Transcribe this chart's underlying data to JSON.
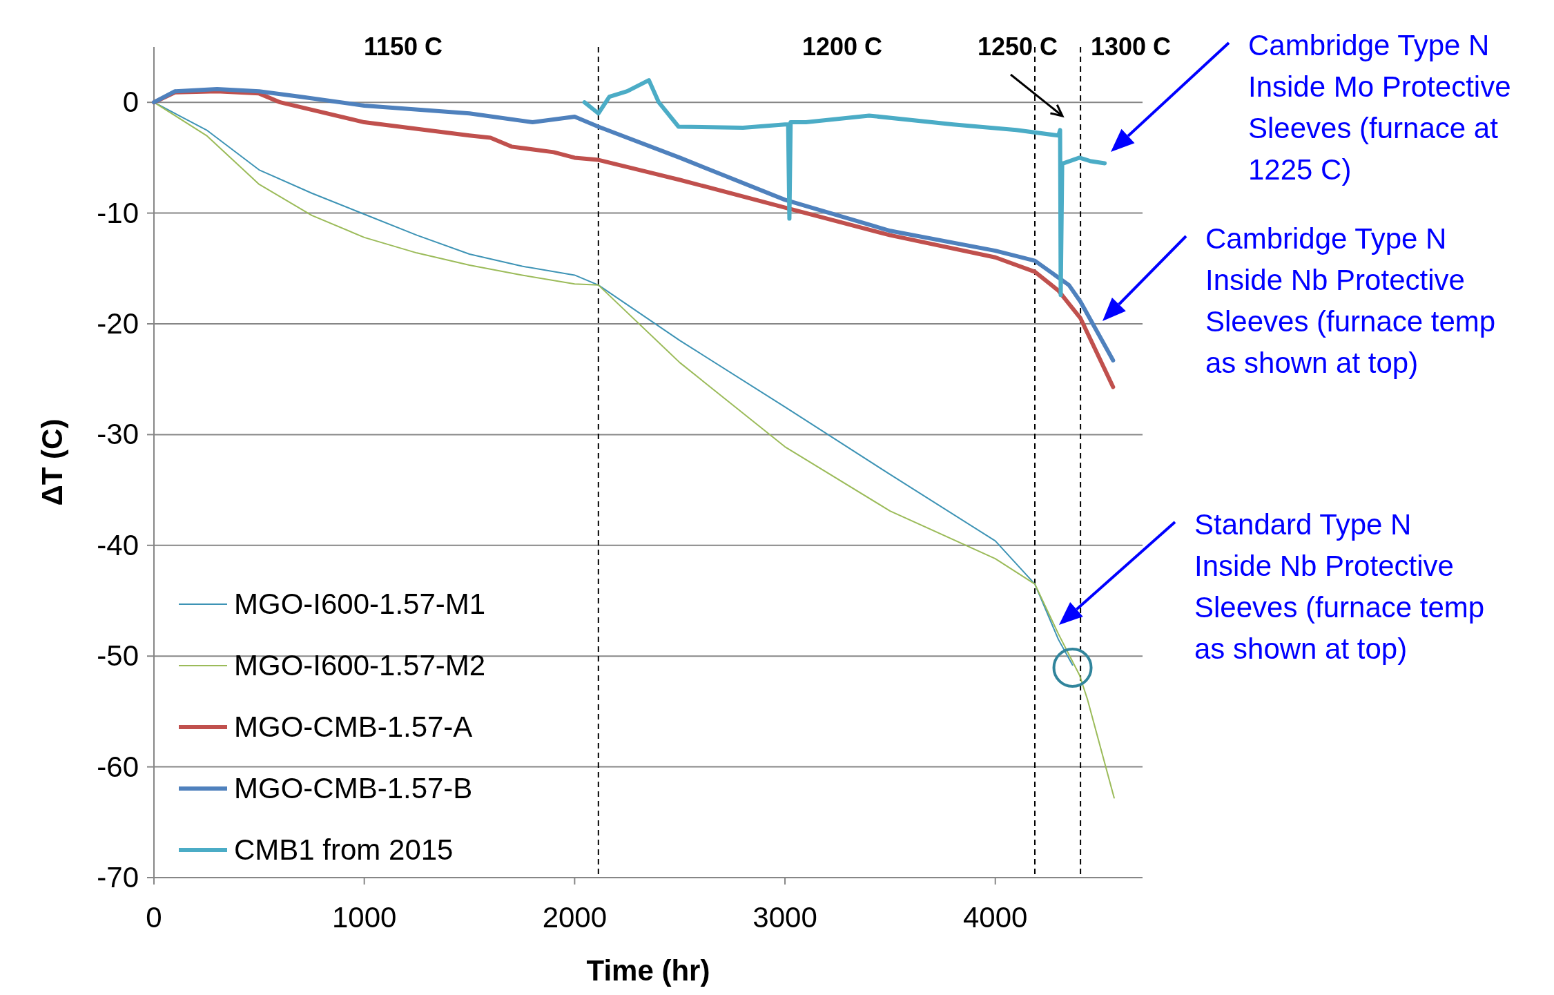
{
  "chart_data": {
    "type": "line",
    "xlabel": "Time (hr)",
    "ylabel": "ΔT (C)",
    "xlim": [
      0,
      4700
    ],
    "ylim": [
      -70,
      5
    ],
    "xticks": [
      0,
      1000,
      2000,
      3000,
      4000
    ],
    "yticks": [
      -70,
      -60,
      -50,
      -40,
      -30,
      -20,
      -10,
      0
    ],
    "grid": "y",
    "legend": "bottom left",
    "line_style": "solid",
    "marker": "none",
    "series": [
      {
        "name": "MGO-I600-1.57-M1",
        "color": "#3d93b5",
        "x": [
          0,
          250,
          500,
          750,
          1000,
          1250,
          1500,
          1750,
          2000,
          2113,
          2500,
          3000,
          3500,
          4000,
          4188,
          4300,
          4367
        ],
        "values": [
          0,
          -2.5,
          -6.1,
          -8.2,
          -10.1,
          -12,
          -13.7,
          -14.8,
          -15.6,
          -16.5,
          -21.5,
          -27.5,
          -33.6,
          -39.6,
          -43.5,
          -48.5,
          -50.8
        ]
      },
      {
        "name": "MGO-I600-1.57-M2",
        "color": "#9bbb59",
        "x": [
          0,
          250,
          500,
          750,
          1000,
          1250,
          1500,
          1750,
          2000,
          2113,
          2500,
          3000,
          3500,
          4000,
          4188,
          4300,
          4400,
          4438,
          4565
        ],
        "values": [
          0,
          -3,
          -7.4,
          -10.2,
          -12.2,
          -13.6,
          -14.7,
          -15.6,
          -16.4,
          -16.5,
          -23.5,
          -31.1,
          -36.9,
          -41.2,
          -43.5,
          -48,
          -51.7,
          -53.9,
          -62.8
        ]
      },
      {
        "name": "MGO-CMB-1.57-A",
        "color": "#c0504d",
        "x": [
          0,
          100,
          300,
          500,
          600,
          1000,
          1500,
          1600,
          1700,
          1900,
          2000,
          2113,
          2500,
          3000,
          3500,
          4000,
          4188,
          4300,
          4405,
          4560
        ],
        "values": [
          0,
          0.9,
          1,
          0.8,
          0,
          -1.8,
          -3,
          -3.2,
          -4,
          -4.5,
          -5,
          -5.2,
          -7,
          -9.5,
          -12,
          -14,
          -15.3,
          -17,
          -19.5,
          -25.7
        ]
      },
      {
        "name": "MGO-CMB-1.57-B",
        "color": "#4f81bd",
        "x": [
          0,
          100,
          300,
          500,
          700,
          1000,
          1500,
          1800,
          2000,
          2113,
          2500,
          3000,
          3500,
          4000,
          4188,
          4350,
          4405,
          4560
        ],
        "values": [
          0,
          1,
          1.2,
          1,
          0.5,
          -0.3,
          -1,
          -1.8,
          -1.3,
          -2.2,
          -5,
          -8.8,
          -11.6,
          -13.4,
          -14.3,
          -16.5,
          -18,
          -23.3
        ]
      },
      {
        "name": "CMB1 from 2015",
        "color": "#4bacc6",
        "x": [
          2047,
          2113,
          2165,
          2250,
          2353,
          2400,
          2494,
          2800,
          3000,
          3015,
          3021,
          3027,
          3100,
          3400,
          3800,
          4100,
          4300,
          4308,
          4311,
          4318,
          4325,
          4400,
          4450,
          4520
        ],
        "values": [
          0,
          -1,
          0.5,
          1,
          2,
          0,
          -2.2,
          -2.3,
          -2,
          -2,
          -10.5,
          -1.8,
          -1.8,
          -1.2,
          -2,
          -2.5,
          -3,
          -2.5,
          -17.4,
          -5.5,
          -5.5,
          -5,
          -5.3,
          -5.5
        ]
      }
    ],
    "ref_lines": [
      {
        "axis": "x",
        "value": 2113,
        "line_style": "dashed",
        "color": "#000000"
      },
      {
        "axis": "x",
        "value": 4188,
        "line_style": "dashed",
        "color": "#000000"
      },
      {
        "axis": "x",
        "value": 4405,
        "line_style": "dashed",
        "color": "#000000"
      }
    ],
    "annotations": [
      "1150 C",
      "1200 C",
      "1250 C",
      "1300 C",
      "Cambridge Type N Inside Mo Protective Sleeves (furnace at 1225 C)",
      "Cambridge Type N Inside Nb Protective Sleeves (furnace temp as shown at top)",
      "Standard Type N Inside Nb Protective Sleeves (furnace temp as shown at top)"
    ]
  }
}
